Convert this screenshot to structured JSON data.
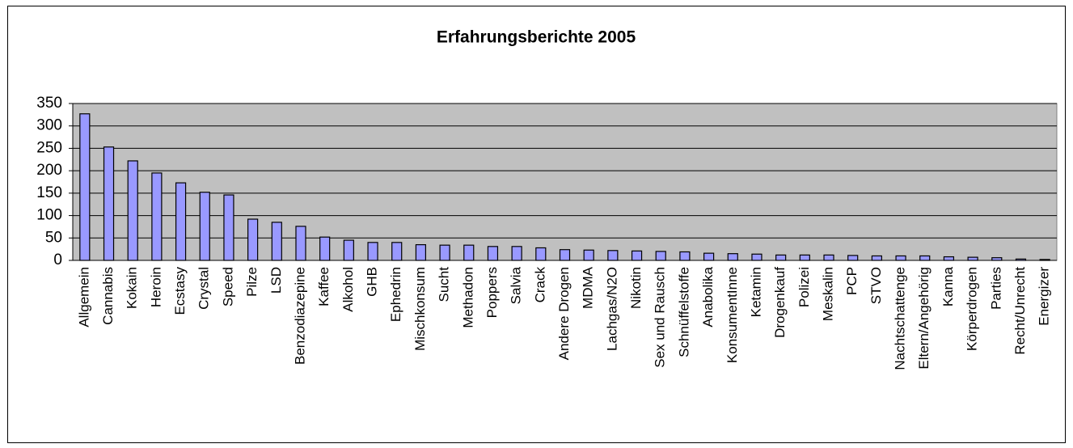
{
  "chart_data": {
    "type": "bar",
    "title": "Erfahrungsberichte 2005",
    "categories": [
      "Allgemein",
      "Cannabis",
      "Kokain",
      "Heroin",
      "Ecstasy",
      "Crystal",
      "Speed",
      "Pilze",
      "LSD",
      "Benzodiazepine",
      "Kaffee",
      "Alkohol",
      "GHB",
      "Ephedrin",
      "Mischkonsum",
      "Sucht",
      "Methadon",
      "Poppers",
      "Salvia",
      "Crack",
      "Andere Drogen",
      "MDMA",
      "Lachgas/N2O",
      "Nikotin",
      "Sex und Rausch",
      "Schnüffelstoffe",
      "Anabolika",
      "KonsumentInne",
      "Ketamin",
      "Drogenkauf",
      "Polizei",
      "Meskalin",
      "PCP",
      "STVO",
      "Nachtschattenge",
      "Eltern/Angehörig",
      "Kanna",
      "Körperdrogen",
      "Parties",
      "Recht/Unrecht",
      "Energizer"
    ],
    "values": [
      327,
      253,
      222,
      195,
      173,
      152,
      146,
      92,
      85,
      76,
      52,
      45,
      40,
      40,
      35,
      34,
      34,
      31,
      31,
      28,
      24,
      23,
      22,
      21,
      20,
      19,
      16,
      15,
      14,
      12,
      12,
      12,
      11,
      10,
      10,
      10,
      8,
      7,
      6,
      3,
      2
    ],
    "color": "#9999ff",
    "ylim": [
      0,
      350
    ],
    "yticks": [
      0,
      50,
      100,
      150,
      200,
      250,
      300,
      350
    ],
    "grid": true
  }
}
